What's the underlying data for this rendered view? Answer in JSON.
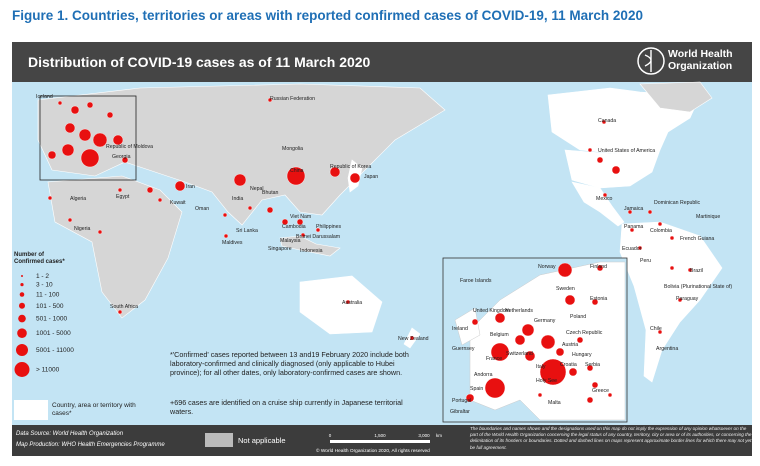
{
  "caption": "Figure 1. Countries, territories or areas with reported confirmed cases of COVID-19, 11 March 2020",
  "header": {
    "title": "Distribution of COVID-19 cases as of 11 March 2020",
    "org_line1": "World Health",
    "org_line2": "Organization"
  },
  "labels": [
    "Russian Federation",
    "Mongolia",
    "China",
    "Republic of Korea",
    "Japan",
    "Nepal",
    "Bhutan",
    "India",
    "Sri Lanka",
    "Maldives",
    "Cambodia",
    "Philippines",
    "Viet Nam",
    "Brunei Darussalam",
    "Malaysia",
    "Singapore",
    "Indonesia",
    "Australia",
    "New Zealand",
    "South Africa",
    "Egypt",
    "Algeria",
    "Nigeria",
    "Iran",
    "Kuwait",
    "Oman",
    "Canada",
    "United States of America",
    "Mexico",
    "Jamaica",
    "Dominican Republic",
    "Martinique",
    "Panama",
    "Colombia",
    "Ecuador",
    "Peru",
    "French Guiana",
    "Brazil",
    "Bolivia (Plurinational State of)",
    "Paraguay",
    "Chile",
    "Argentina",
    "Iceland",
    "Republic of Moldova",
    "Georgia",
    "Faroe Islands",
    "Norway",
    "Finland",
    "Sweden",
    "Estonia",
    "United Kingdom",
    "Ireland",
    "Netherlands",
    "Belgium",
    "Germany",
    "France",
    "Guernsey",
    "Switzerland",
    "Italy",
    "Austria",
    "Poland",
    "Czech Republic",
    "Hungary",
    "Croatia",
    "Serbia",
    "Greece",
    "Spain",
    "Portugal",
    "Andorra",
    "Gibraltar",
    "Holy See",
    "Malta"
  ],
  "legend": {
    "title_line1": "Number of",
    "title_line2": "Confirmed cases*",
    "items": [
      "1 - 2",
      "3 - 10",
      "11 - 100",
      "101 - 500",
      "501 - 1000",
      "1001 - 5000",
      "5001 - 11000",
      "> 11000"
    ],
    "area": "Country, area or territory with cases*"
  },
  "notes": [
    "*'Confirmed' cases reported between 13 and19 February 2020 include both laboratory-confirmed and clinically diagnosed (only applicable to Hubei province); for all other dates, only laboratory-confirmed cases are shown.",
    "+696 cases are identified on a cruise ship currently in Japanese territorial waters."
  ],
  "footer": {
    "source": "Data Source: World Health Organization",
    "production": "Map Production: WHO Health Emergencies Programme",
    "not_applicable": "Not applicable",
    "scale": [
      "0",
      "1,500",
      "3,000"
    ],
    "scale_unit": "km",
    "copyright": "© World Health Organization 2020, All rights reserved",
    "disclaimer": "The boundaries and names shown and the designations used on this map do not imply the expression of any opinion whatsoever on the part of the World Health Organization concerning the legal status of any country, territory, city or area or of its authorities, or concerning the delimitation of its frontiers or boundaries. Dotted and dashed lines on maps represent approximate border lines for which there may not yet be full agreement."
  }
}
